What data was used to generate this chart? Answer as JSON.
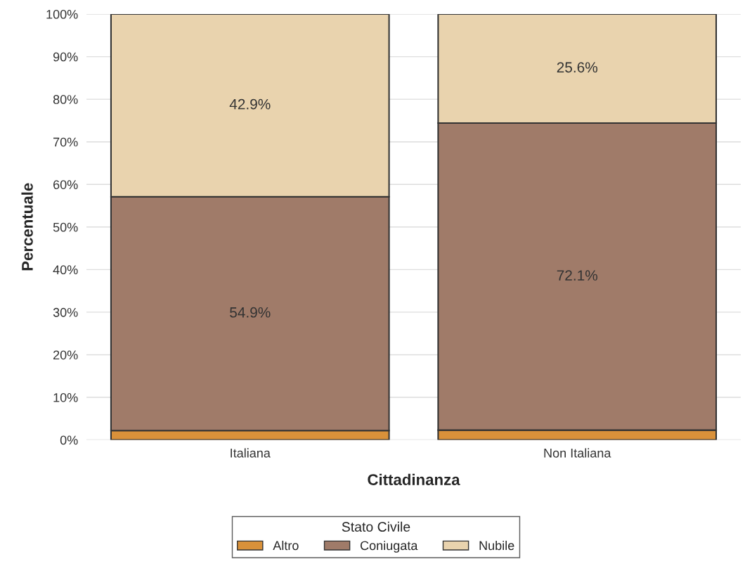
{
  "chart_data": {
    "type": "bar",
    "stacked": true,
    "xlabel": "Cittadinanza",
    "ylabel": "Percentuale",
    "legend_title": "Stato Civile",
    "legend": "bottom",
    "grid": "y",
    "categories": [
      "Italiana",
      "Non Italiana"
    ],
    "ylim": [
      0,
      100
    ],
    "yticks": [
      {
        "value": 0,
        "label": "0%"
      },
      {
        "value": 10,
        "label": "10%"
      },
      {
        "value": 20,
        "label": "20%"
      },
      {
        "value": 30,
        "label": "30%"
      },
      {
        "value": 40,
        "label": "40%"
      },
      {
        "value": 50,
        "label": "50%"
      },
      {
        "value": 60,
        "label": "60%"
      },
      {
        "value": 70,
        "label": "70%"
      },
      {
        "value": 80,
        "label": "80%"
      },
      {
        "value": 90,
        "label": "90%"
      },
      {
        "value": 100,
        "label": "100%"
      }
    ],
    "series": [
      {
        "name": "Altro",
        "color": "#d9913a",
        "values": [
          2.2,
          2.3
        ],
        "value_labels": [
          null,
          null
        ]
      },
      {
        "name": "Coniugata",
        "color": "#a07b69",
        "values": [
          54.9,
          72.1
        ],
        "value_labels": [
          "54.9%",
          "72.1%"
        ]
      },
      {
        "name": "Nubile",
        "color": "#e9d3ae",
        "values": [
          42.9,
          25.6
        ],
        "value_labels": [
          "42.9%",
          "25.6%"
        ]
      }
    ]
  }
}
